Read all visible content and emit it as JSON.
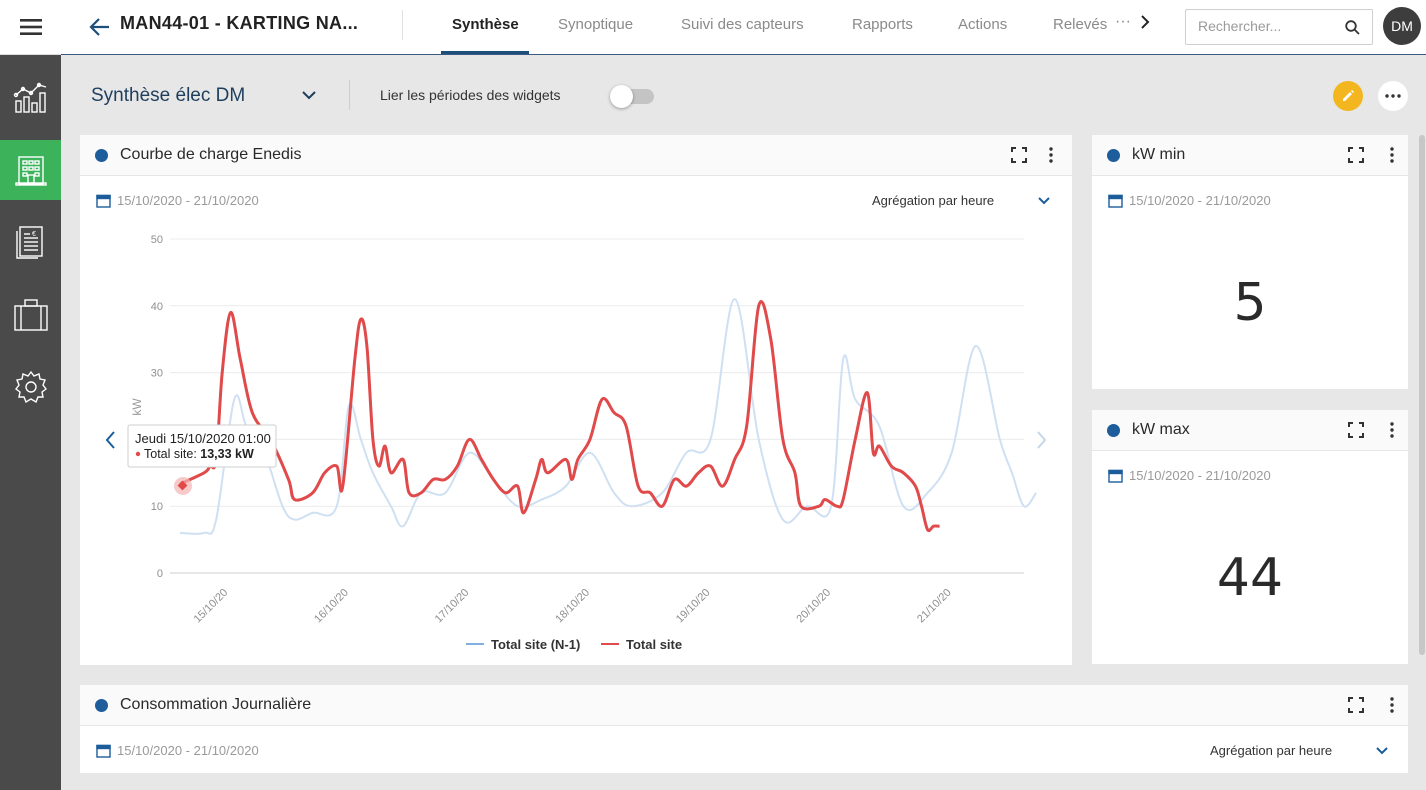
{
  "app": {
    "site_title": "MAN44-01 - KARTING NA...",
    "tabs": [
      {
        "label": "Synthèse",
        "active": true
      },
      {
        "label": "Synoptique",
        "active": false
      },
      {
        "label": "Suivi des capteurs",
        "active": false
      },
      {
        "label": "Rapports",
        "active": false
      },
      {
        "label": "Actions",
        "active": false
      },
      {
        "label": "Relevés",
        "active": false
      }
    ],
    "tabs_more": "···",
    "search_placeholder": "Rechercher...",
    "avatar_initials": "DM"
  },
  "sidebar": {
    "items": [
      {
        "icon": "chart-icon",
        "active": false
      },
      {
        "icon": "building-icon",
        "active": true
      },
      {
        "icon": "invoice-icon",
        "active": false
      },
      {
        "icon": "briefcase-icon",
        "active": false
      },
      {
        "icon": "gear-icon",
        "active": false
      }
    ]
  },
  "dashboard": {
    "title": "Synthèse élec DM",
    "link_periods_label": "Lier les périodes des widgets",
    "link_periods_enabled": false
  },
  "widgets": {
    "courbe": {
      "title": "Courbe de charge Enedis",
      "date_range": "15/10/2020 - 21/10/2020",
      "aggregation": "Agrégation par heure"
    },
    "kw_min": {
      "title": "kW min",
      "date_range": "15/10/2020 - 21/10/2020",
      "value": "5"
    },
    "kw_max": {
      "title": "kW max",
      "date_range": "15/10/2020 - 21/10/2020",
      "value": "44"
    },
    "conso": {
      "title": "Consommation Journalière",
      "date_range": "15/10/2020 - 21/10/2020",
      "aggregation": "Agrégation par heure"
    }
  },
  "chart_data": {
    "type": "line",
    "ylabel": "kW",
    "ylim": [
      0,
      50
    ],
    "yticks": [
      0,
      10,
      20,
      30,
      40,
      50
    ],
    "xlim": [
      0,
      7
    ],
    "xticks": [
      {
        "x": 0.4,
        "label": "15/10/20"
      },
      {
        "x": 1.4,
        "label": "16/10/20"
      },
      {
        "x": 2.4,
        "label": "17/10/20"
      },
      {
        "x": 3.4,
        "label": "18/10/20"
      },
      {
        "x": 4.4,
        "label": "19/10/20"
      },
      {
        "x": 5.4,
        "label": "20/10/20"
      },
      {
        "x": 6.4,
        "label": "21/10/20"
      }
    ],
    "grid": true,
    "legend_position": "bottom",
    "series": [
      {
        "name": "Total site (N-1)",
        "color": "#cfe0f2",
        "points": [
          [
            0,
            6
          ],
          [
            0.2,
            6
          ],
          [
            0.3,
            8
          ],
          [
            0.45,
            26
          ],
          [
            0.55,
            22
          ],
          [
            0.7,
            18
          ],
          [
            0.85,
            10
          ],
          [
            0.95,
            8
          ],
          [
            1.1,
            9
          ],
          [
            1.3,
            10
          ],
          [
            1.4,
            25
          ],
          [
            1.5,
            20
          ],
          [
            1.6,
            15
          ],
          [
            1.75,
            10
          ],
          [
            1.85,
            7
          ],
          [
            2.0,
            12
          ],
          [
            2.2,
            12
          ],
          [
            2.4,
            18
          ],
          [
            2.6,
            14
          ],
          [
            2.8,
            10
          ],
          [
            3.0,
            11
          ],
          [
            3.2,
            13
          ],
          [
            3.4,
            18
          ],
          [
            3.6,
            12
          ],
          [
            3.75,
            10
          ],
          [
            4.0,
            12
          ],
          [
            4.2,
            18
          ],
          [
            4.4,
            20
          ],
          [
            4.6,
            41
          ],
          [
            4.8,
            20
          ],
          [
            5.0,
            8
          ],
          [
            5.2,
            10
          ],
          [
            5.4,
            10
          ],
          [
            5.5,
            32
          ],
          [
            5.6,
            26
          ],
          [
            5.8,
            22
          ],
          [
            6.0,
            10
          ],
          [
            6.2,
            12
          ],
          [
            6.4,
            18
          ],
          [
            6.6,
            34
          ],
          [
            6.8,
            20
          ],
          [
            6.9,
            15
          ],
          [
            7.0,
            10
          ],
          [
            7.1,
            12
          ]
        ]
      },
      {
        "name": "Total site",
        "color": "#e04a4a",
        "points": [
          [
            0,
            13.33
          ],
          [
            0.2,
            15
          ],
          [
            0.25,
            16
          ],
          [
            0.3,
            17
          ],
          [
            0.35,
            30
          ],
          [
            0.42,
            39
          ],
          [
            0.5,
            32
          ],
          [
            0.6,
            24
          ],
          [
            0.75,
            20
          ],
          [
            0.9,
            14
          ],
          [
            0.95,
            11
          ],
          [
            1.1,
            12
          ],
          [
            1.2,
            15
          ],
          [
            1.3,
            16
          ],
          [
            1.35,
            13
          ],
          [
            1.45,
            32
          ],
          [
            1.5,
            38
          ],
          [
            1.55,
            34
          ],
          [
            1.6,
            20
          ],
          [
            1.65,
            16
          ],
          [
            1.7,
            19
          ],
          [
            1.75,
            15
          ],
          [
            1.85,
            17
          ],
          [
            1.9,
            12
          ],
          [
            2.0,
            12
          ],
          [
            2.1,
            14
          ],
          [
            2.2,
            14
          ],
          [
            2.3,
            16
          ],
          [
            2.4,
            20
          ],
          [
            2.5,
            17
          ],
          [
            2.6,
            14
          ],
          [
            2.7,
            12
          ],
          [
            2.8,
            13
          ],
          [
            2.85,
            9
          ],
          [
            2.95,
            14
          ],
          [
            3.0,
            17
          ],
          [
            3.05,
            15
          ],
          [
            3.2,
            17
          ],
          [
            3.25,
            14
          ],
          [
            3.3,
            17
          ],
          [
            3.4,
            20
          ],
          [
            3.5,
            26
          ],
          [
            3.6,
            24
          ],
          [
            3.7,
            22
          ],
          [
            3.8,
            13
          ],
          [
            3.9,
            12
          ],
          [
            4.0,
            10
          ],
          [
            4.1,
            14
          ],
          [
            4.2,
            13
          ],
          [
            4.3,
            15
          ],
          [
            4.4,
            16
          ],
          [
            4.5,
            13
          ],
          [
            4.6,
            17
          ],
          [
            4.7,
            22
          ],
          [
            4.8,
            40
          ],
          [
            4.9,
            35
          ],
          [
            5.0,
            20
          ],
          [
            5.1,
            15
          ],
          [
            5.15,
            10
          ],
          [
            5.3,
            10
          ],
          [
            5.35,
            11
          ],
          [
            5.45,
            10
          ],
          [
            5.5,
            11
          ],
          [
            5.6,
            20
          ],
          [
            5.7,
            27
          ],
          [
            5.75,
            18
          ],
          [
            5.8,
            19
          ],
          [
            5.9,
            16
          ],
          [
            6.0,
            15
          ],
          [
            6.1,
            13
          ],
          [
            6.15,
            10
          ],
          [
            6.2,
            6.5
          ],
          [
            6.25,
            7
          ],
          [
            6.3,
            7
          ]
        ]
      }
    ],
    "tooltip": {
      "title": "Jeudi 15/10/2020 01:00",
      "series_label": "Total site:",
      "series_value": "13,33 kW",
      "x": 0,
      "y": 13.33
    }
  }
}
